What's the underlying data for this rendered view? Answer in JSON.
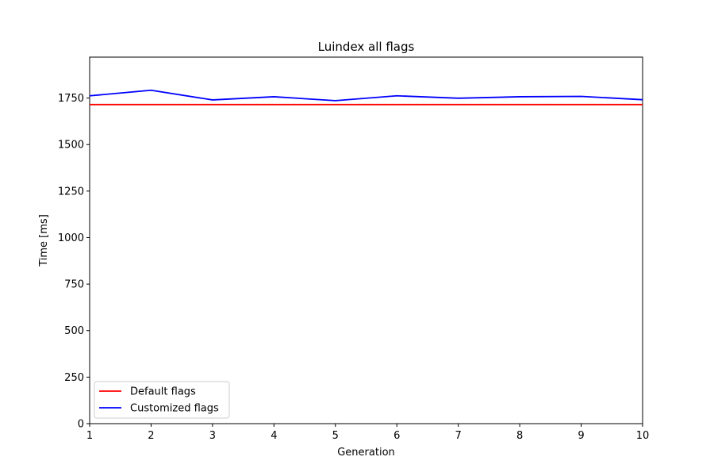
{
  "chart_data": {
    "type": "line",
    "title": "Luindex all flags",
    "xlabel": "Generation",
    "ylabel": "Time [ms]",
    "xlim": [
      1,
      10
    ],
    "ylim": [
      0,
      1970
    ],
    "x_ticks": [
      1,
      2,
      3,
      4,
      5,
      6,
      7,
      8,
      9,
      10
    ],
    "y_ticks": [
      0,
      250,
      500,
      750,
      1000,
      1250,
      1500,
      1750
    ],
    "grid": false,
    "legend_position": "lower-left",
    "x": [
      1,
      2,
      3,
      4,
      5,
      6,
      7,
      8,
      9,
      10
    ],
    "series": [
      {
        "name": "Default flags",
        "color": "#ff0000",
        "values": [
          1715,
          1715,
          1715,
          1715,
          1715,
          1715,
          1715,
          1715,
          1715,
          1715
        ]
      },
      {
        "name": "Customized flags",
        "color": "#0000ff",
        "values": [
          1762,
          1792,
          1740,
          1757,
          1736,
          1762,
          1749,
          1757,
          1759,
          1741
        ]
      }
    ]
  }
}
